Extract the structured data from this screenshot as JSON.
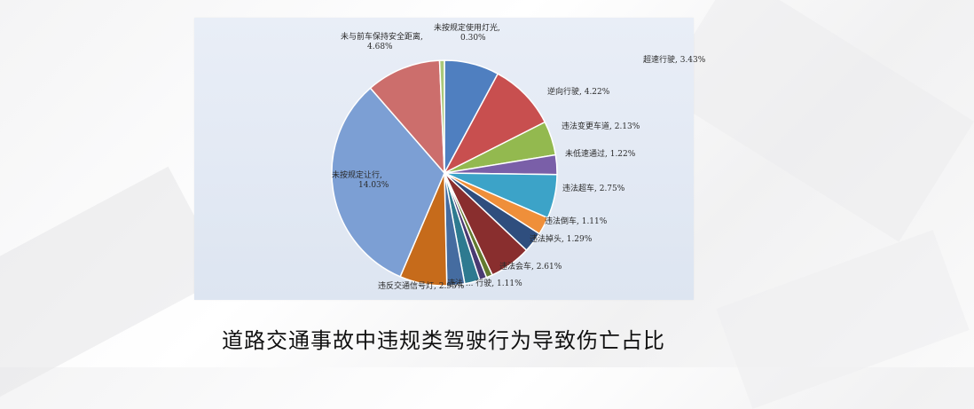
{
  "caption": "道路交通事故中违规类驾驶行为导致伤亡占比",
  "chart_data": {
    "type": "pie",
    "title": "",
    "slices": [
      {
        "label": "超速行驶, 3.43%",
        "value": 3.43,
        "color": "#4f7fc0"
      },
      {
        "label": "逆向行驶, 4.22%",
        "value": 4.22,
        "color": "#c84f4f"
      },
      {
        "label": "违法变更车道, 2.13%",
        "value": 2.13,
        "color": "#93b94f"
      },
      {
        "label": "未低速通过, 1.22%",
        "value": 1.22,
        "color": "#7a5fa8"
      },
      {
        "label": "违法超车, 2.75%",
        "value": 2.75,
        "color": "#3ca3c8"
      },
      {
        "label": "违法倒车, 1.11%",
        "value": 1.11,
        "color": "#ef8f3a"
      },
      {
        "label": "违法掉头, 1.29%",
        "value": 1.29,
        "color": "#2f4e7e"
      },
      {
        "label": "违法会车, 2.61%",
        "value": 2.61,
        "color": "#892e2e"
      },
      {
        "label": "",
        "value": 0.39,
        "color": "#637a2f"
      },
      {
        "label": "",
        "value": 0.45,
        "color": "#4a3a72"
      },
      {
        "label": "",
        "value": 0.95,
        "color": "#2e7a90"
      },
      {
        "label": "",
        "value": 1.11,
        "color": "#456ca0"
      },
      {
        "label": "违反交通信号灯, 2.95%",
        "value": 2.95,
        "color": "#c66b1b"
      },
      {
        "label": "未按规定让行, 14.03%",
        "value": 14.03,
        "color": "#7c9fd4"
      },
      {
        "label": "未与前车保持安全距离, 4.68%",
        "value": 4.68,
        "color": "#cc6e6c"
      },
      {
        "label": "未按规定使用灯光, 0.30%",
        "value": 0.3,
        "color": "#a9c87a"
      }
    ],
    "overlapping_text": "违法 ... 行驶, 1.11%",
    "legend": "none"
  }
}
